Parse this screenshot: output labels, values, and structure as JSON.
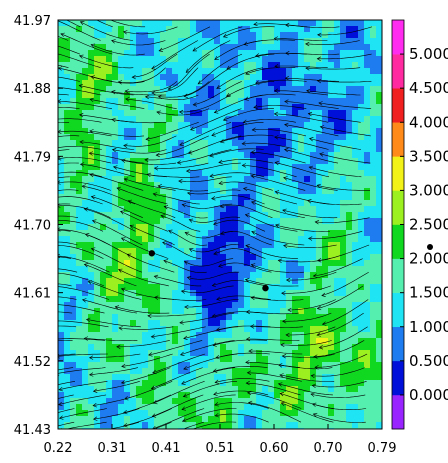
{
  "chart_data": {
    "type": "heatmap",
    "title": "",
    "xlabel": "",
    "ylabel": "",
    "x_ticks": [
      "0.22",
      "0.31",
      "0.41",
      "0.51",
      "0.60",
      "0.70",
      "0.79"
    ],
    "y_ticks": [
      "41.97",
      "41.88",
      "41.79",
      "41.70",
      "41.61",
      "41.52",
      "41.43"
    ],
    "xlim": [
      0.22,
      0.79
    ],
    "ylim": [
      41.43,
      41.97
    ],
    "colorbar": {
      "labels": [
        "0.000",
        "0.500",
        "1.000",
        "1.500",
        "2.000",
        "2.500",
        "3.000",
        "3.500",
        "4.000",
        "4.500",
        "5.000"
      ],
      "range": [
        -0.5,
        5.5
      ],
      "colors": [
        "#9a24ff",
        "#0010d8",
        "#1f7bf0",
        "#1fe4f4",
        "#55f0b0",
        "#10d820",
        "#9cf020",
        "#f2f218",
        "#ff8a1a",
        "#f02020",
        "#ff2aa0",
        "#ff2cf0"
      ]
    },
    "markers": [
      {
        "x": 0.385,
        "y": 41.662
      },
      {
        "x": 0.585,
        "y": 41.616
      }
    ],
    "overlay": "streamlines"
  }
}
